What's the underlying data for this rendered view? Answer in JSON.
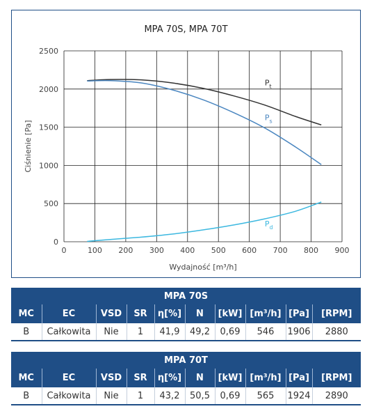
{
  "chart_data": {
    "type": "line",
    "title": "MPA 70S, MPA 70T",
    "xlabel": "Wydajność [m³/h]",
    "ylabel": "Ciśnienie [Pa]",
    "xlim": [
      0,
      900
    ],
    "ylim": [
      0,
      2500
    ],
    "xticks": [
      "0",
      "100",
      "200",
      "300",
      "400",
      "500",
      "600",
      "700",
      "800",
      "900"
    ],
    "yticks": [
      "0",
      "500",
      "1000",
      "1500",
      "2000",
      "2500"
    ],
    "grid": true,
    "series": [
      {
        "name": "Pt",
        "label_main": "P",
        "label_sub": "t",
        "color": "#333333",
        "x": [
          75,
          150,
          250,
          350,
          450,
          550,
          650,
          750,
          833
        ],
        "y": [
          2110,
          2125,
          2120,
          2080,
          2010,
          1910,
          1790,
          1640,
          1530
        ]
      },
      {
        "name": "Ps",
        "label_main": "P",
        "label_sub": "s",
        "color": "#4a86c0",
        "x": [
          75,
          150,
          250,
          350,
          450,
          550,
          650,
          750,
          833
        ],
        "y": [
          2105,
          2110,
          2080,
          1990,
          1860,
          1690,
          1490,
          1240,
          1010
        ]
      },
      {
        "name": "Pd",
        "label_main": "P",
        "label_sub": "d",
        "color": "#3cb8e0",
        "x": [
          75,
          150,
          250,
          350,
          450,
          550,
          650,
          750,
          833
        ],
        "y": [
          5,
          30,
          60,
          100,
          155,
          220,
          300,
          400,
          520
        ]
      }
    ]
  },
  "tables": [
    {
      "title": "MPA 70S",
      "headers": [
        "MC",
        "EC",
        "VSD",
        "SR",
        "η[%]",
        "N",
        "[kW]",
        "[m³/h]",
        "[Pa]",
        "[RPM]"
      ],
      "row": [
        "B",
        "Całkowita",
        "Nie",
        "1",
        "41,9",
        "49,2",
        "0,69",
        "546",
        "1906",
        "2880"
      ]
    },
    {
      "title": "MPA 70T",
      "headers": [
        "MC",
        "EC",
        "VSD",
        "SR",
        "η[%]",
        "N",
        "[kW]",
        "[m³/h]",
        "[Pa]",
        "[RPM]"
      ],
      "row": [
        "B",
        "Całkowita",
        "Nie",
        "1",
        "43,2",
        "50,5",
        "0,69",
        "565",
        "1924",
        "2890"
      ]
    }
  ]
}
